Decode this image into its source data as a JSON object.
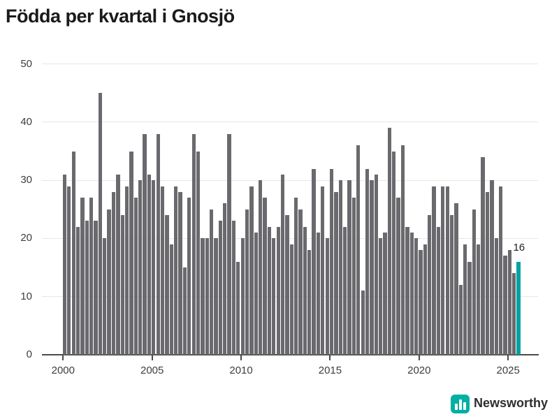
{
  "title": "Födda per kvartal i Gnosjö",
  "annotation": {
    "last_value_label": "16"
  },
  "branding": {
    "logo_text": "Newsworthy",
    "logo_color": "#00b0a4"
  },
  "colors": {
    "bar": "#6a6a6e",
    "accent": "#00a2a2",
    "axis": "#4a4a4a",
    "grid": "#e7e7e7"
  },
  "chart_data": {
    "type": "bar",
    "title": "Födda per kvartal i Gnosjö",
    "xlabel": "",
    "ylabel": "",
    "ylim": [
      0,
      50
    ],
    "grid": true,
    "start_quarter": "2000 Q1",
    "end_quarter": "2025 Q3",
    "x_tick_labels": [
      "2000",
      "2005",
      "2010",
      "2015",
      "2020",
      "2025"
    ],
    "y_tick_labels": [
      "0",
      "10",
      "20",
      "30",
      "40",
      "50"
    ],
    "values": [
      31,
      29,
      35,
      22,
      27,
      23,
      27,
      23,
      45,
      20,
      25,
      28,
      31,
      24,
      29,
      35,
      27,
      30,
      38,
      31,
      30,
      38,
      29,
      24,
      19,
      29,
      28,
      15,
      27,
      38,
      35,
      20,
      20,
      25,
      20,
      23,
      26,
      38,
      23,
      16,
      20,
      25,
      29,
      21,
      30,
      27,
      22,
      20,
      22,
      31,
      24,
      19,
      27,
      25,
      22,
      18,
      32,
      21,
      29,
      20,
      32,
      28,
      30,
      22,
      30,
      27,
      36,
      11,
      32,
      30,
      31,
      20,
      21,
      39,
      35,
      27,
      36,
      22,
      21,
      20,
      18,
      19,
      24,
      29,
      22,
      29,
      29,
      24,
      26,
      12,
      19,
      16,
      25,
      19,
      34,
      28,
      30,
      20,
      29,
      17,
      18,
      14,
      16
    ],
    "highlight_last": {
      "quarter": "2025 Q3",
      "value": 16,
      "label": "16"
    },
    "legend": null
  }
}
